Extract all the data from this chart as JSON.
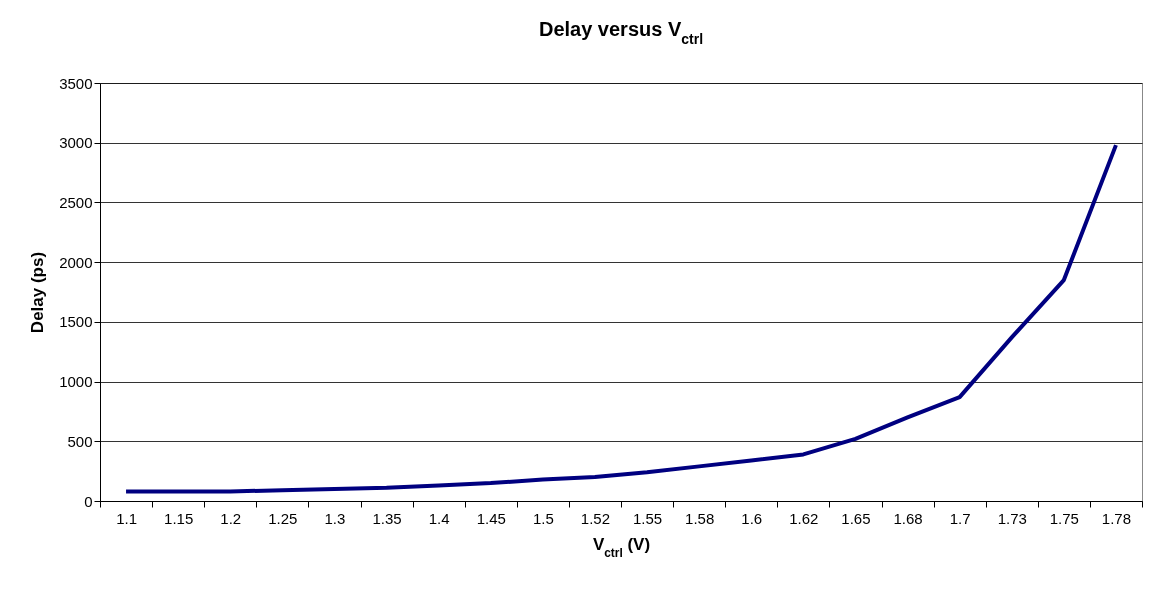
{
  "chart_data": {
    "type": "line",
    "title": "Delay versus V$_{ctrl}$",
    "xlabel": "V$_{ctrl}$ (V)",
    "ylabel": "Delay (ps)",
    "categories": [
      "1.1",
      "1.15",
      "1.2",
      "1.25",
      "1.3",
      "1.35",
      "1.4",
      "1.45",
      "1.5",
      "1.52",
      "1.55",
      "1.58",
      "1.6",
      "1.62",
      "1.65",
      "1.68",
      "1.7",
      "1.73",
      "1.75",
      "1.78"
    ],
    "series": [
      {
        "color": "#000080",
        "values": [
          80,
          80,
          80,
          90,
          100,
          110,
          130,
          150,
          180,
          200,
          240,
          290,
          340,
          390,
          520,
          700,
          870,
          1370,
          1850,
          2980
        ]
      }
    ],
    "ylim": [
      0,
      3500
    ],
    "yticks": [
      0,
      500,
      1000,
      1500,
      2000,
      2500,
      3000,
      3500
    ],
    "grid": "y",
    "marker": "none",
    "line_style": "solid"
  }
}
